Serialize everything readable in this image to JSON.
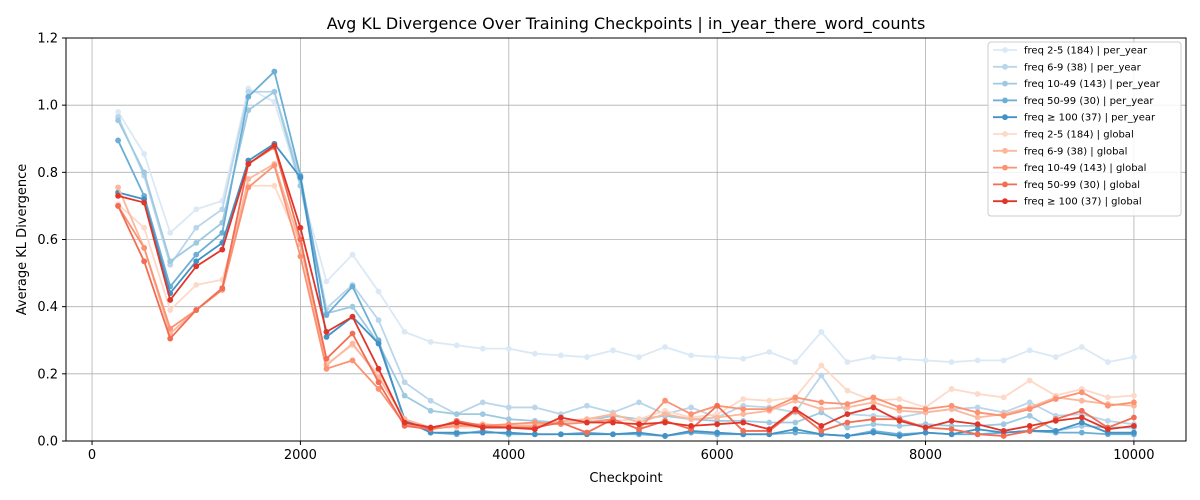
{
  "chart_data": {
    "type": "line",
    "title": "Avg KL Divergence Over Training Checkpoints | in_year_there_word_counts",
    "xlabel": "Checkpoint",
    "ylabel": "Average KL Divergence",
    "xlim": [
      -250,
      10500
    ],
    "ylim": [
      0,
      1.2
    ],
    "xticks": [
      0,
      2000,
      4000,
      6000,
      8000,
      10000
    ],
    "xtick_labels": [
      "0",
      "2000",
      "4000",
      "6000",
      "8000",
      "10000"
    ],
    "yticks": [
      0.0,
      0.2,
      0.4,
      0.6,
      0.8,
      1.0,
      1.2
    ],
    "ytick_labels": [
      "0.0",
      "0.2",
      "0.4",
      "0.6",
      "0.8",
      "1.0",
      "1.2"
    ],
    "grid": true,
    "legend_position": "top-right",
    "x": [
      250,
      500,
      750,
      1000,
      1250,
      1500,
      1750,
      2000,
      2250,
      2500,
      2750,
      3000,
      3250,
      3500,
      3750,
      4000,
      4250,
      4500,
      4750,
      5000,
      5250,
      5500,
      5750,
      6000,
      6250,
      6500,
      6750,
      7000,
      7250,
      7500,
      7750,
      8000,
      8250,
      8500,
      8750,
      9000,
      9250,
      9500,
      9750,
      10000
    ],
    "series": [
      {
        "name": "freq 2-5 (184) | per_year",
        "color": "#dbe9f6",
        "values": [
          0.98,
          0.855,
          0.62,
          0.69,
          0.715,
          1.05,
          1.01,
          0.76,
          0.475,
          0.555,
          0.445,
          0.325,
          0.295,
          0.285,
          0.275,
          0.275,
          0.26,
          0.255,
          0.25,
          0.27,
          0.25,
          0.28,
          0.255,
          0.25,
          0.245,
          0.265,
          0.235,
          0.325,
          0.235,
          0.25,
          0.245,
          0.24,
          0.235,
          0.24,
          0.24,
          0.27,
          0.25,
          0.28,
          0.235,
          0.25
        ]
      },
      {
        "name": "freq 6-9 (38) | per_year",
        "color": "#bad6eb",
        "values": [
          0.965,
          0.79,
          0.525,
          0.635,
          0.69,
          1.04,
          1.04,
          0.78,
          0.395,
          0.465,
          0.36,
          0.175,
          0.12,
          0.08,
          0.115,
          0.1,
          0.1,
          0.08,
          0.105,
          0.085,
          0.115,
          0.08,
          0.1,
          0.07,
          0.105,
          0.1,
          0.085,
          0.195,
          0.08,
          0.075,
          0.07,
          0.085,
          0.095,
          0.1,
          0.085,
          0.115,
          0.075,
          0.08,
          0.06,
          0.05
        ]
      },
      {
        "name": "freq 10-49 (143) | per_year",
        "color": "#9ecae1",
        "values": [
          0.955,
          0.8,
          0.535,
          0.59,
          0.65,
          0.985,
          1.04,
          0.76,
          0.38,
          0.4,
          0.29,
          0.135,
          0.09,
          0.08,
          0.08,
          0.065,
          0.06,
          0.055,
          0.06,
          0.075,
          0.065,
          0.075,
          0.065,
          0.06,
          0.06,
          0.055,
          0.055,
          0.085,
          0.04,
          0.05,
          0.045,
          0.05,
          0.045,
          0.045,
          0.05,
          0.075,
          0.03,
          0.045,
          0.04,
          0.04
        ]
      },
      {
        "name": "freq 50-99 (30) | per_year",
        "color": "#6baed6",
        "values": [
          0.895,
          0.73,
          0.46,
          0.555,
          0.62,
          1.025,
          1.1,
          0.79,
          0.375,
          0.46,
          0.3,
          0.06,
          0.025,
          0.02,
          0.03,
          0.02,
          0.02,
          0.02,
          0.025,
          0.02,
          0.02,
          0.015,
          0.025,
          0.02,
          0.02,
          0.02,
          0.025,
          0.02,
          0.015,
          0.03,
          0.02,
          0.025,
          0.02,
          0.02,
          0.025,
          0.03,
          0.025,
          0.025,
          0.02,
          0.02
        ]
      },
      {
        "name": "freq ≥ 100 (37) | per_year",
        "color": "#4292c6",
        "values": [
          0.74,
          0.72,
          0.44,
          0.535,
          0.59,
          0.835,
          0.885,
          0.785,
          0.31,
          0.37,
          0.29,
          0.065,
          0.025,
          0.025,
          0.025,
          0.025,
          0.02,
          0.02,
          0.02,
          0.02,
          0.025,
          0.015,
          0.03,
          0.025,
          0.02,
          0.02,
          0.035,
          0.02,
          0.015,
          0.025,
          0.015,
          0.025,
          0.02,
          0.035,
          0.025,
          0.03,
          0.03,
          0.055,
          0.025,
          0.025
        ]
      },
      {
        "name": "freq 2-5 (184) | global",
        "color": "#fdd9c8",
        "values": [
          0.705,
          0.635,
          0.39,
          0.465,
          0.48,
          0.76,
          0.76,
          0.585,
          0.23,
          0.285,
          0.2,
          0.065,
          0.04,
          0.04,
          0.04,
          0.045,
          0.05,
          0.05,
          0.065,
          0.06,
          0.065,
          0.09,
          0.07,
          0.08,
          0.125,
          0.12,
          0.13,
          0.225,
          0.15,
          0.12,
          0.125,
          0.1,
          0.155,
          0.14,
          0.13,
          0.18,
          0.135,
          0.155,
          0.13,
          0.135
        ]
      },
      {
        "name": "freq 6-9 (38) | global",
        "color": "#fcb79c",
        "values": [
          0.755,
          0.575,
          0.32,
          0.39,
          0.455,
          0.78,
          0.825,
          0.585,
          0.225,
          0.29,
          0.19,
          0.065,
          0.04,
          0.05,
          0.05,
          0.045,
          0.045,
          0.06,
          0.065,
          0.08,
          0.055,
          0.08,
          0.065,
          0.07,
          0.08,
          0.09,
          0.12,
          0.095,
          0.1,
          0.115,
          0.09,
          0.085,
          0.095,
          0.07,
          0.08,
          0.1,
          0.13,
          0.12,
          0.11,
          0.105
        ]
      },
      {
        "name": "freq 10-49 (143) | global",
        "color": "#fc9272",
        "values": [
          0.7,
          0.575,
          0.335,
          0.39,
          0.45,
          0.755,
          0.82,
          0.55,
          0.215,
          0.24,
          0.155,
          0.05,
          0.035,
          0.045,
          0.045,
          0.05,
          0.055,
          0.05,
          0.055,
          0.065,
          0.035,
          0.12,
          0.08,
          0.105,
          0.095,
          0.095,
          0.13,
          0.115,
          0.11,
          0.13,
          0.1,
          0.095,
          0.105,
          0.085,
          0.075,
          0.095,
          0.125,
          0.145,
          0.105,
          0.115
        ]
      },
      {
        "name": "freq 50-99 (30) | global",
        "color": "#f26d53",
        "values": [
          0.7,
          0.535,
          0.305,
          0.39,
          0.455,
          0.825,
          0.875,
          0.6,
          0.245,
          0.32,
          0.175,
          0.045,
          0.035,
          0.06,
          0.045,
          0.04,
          0.04,
          0.055,
          0.025,
          0.065,
          0.035,
          0.06,
          0.035,
          0.105,
          0.03,
          0.03,
          0.09,
          0.03,
          0.055,
          0.065,
          0.065,
          0.04,
          0.035,
          0.02,
          0.015,
          0.03,
          0.065,
          0.09,
          0.04,
          0.07
        ]
      },
      {
        "name": "freq ≥ 100 (37) | global",
        "color": "#e0362a",
        "values": [
          0.73,
          0.71,
          0.42,
          0.52,
          0.57,
          0.825,
          0.88,
          0.635,
          0.325,
          0.37,
          0.215,
          0.055,
          0.04,
          0.055,
          0.04,
          0.04,
          0.035,
          0.07,
          0.055,
          0.055,
          0.05,
          0.055,
          0.045,
          0.05,
          0.055,
          0.035,
          0.095,
          0.045,
          0.08,
          0.1,
          0.06,
          0.04,
          0.06,
          0.05,
          0.03,
          0.045,
          0.06,
          0.07,
          0.035,
          0.045
        ]
      }
    ]
  }
}
